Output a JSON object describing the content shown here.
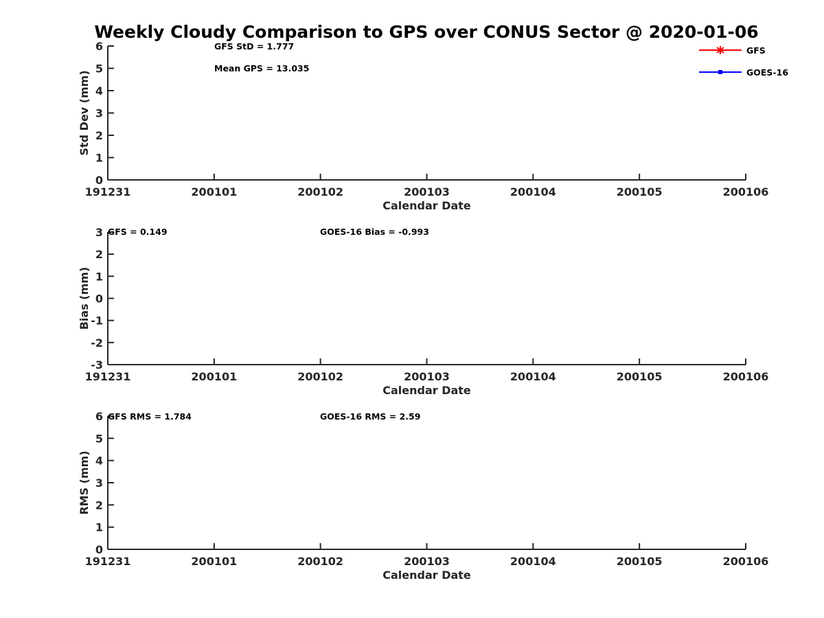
{
  "title": "Weekly Cloudy Comparison to GPS over CONUS Sector @ 2020-01-06",
  "colors": {
    "axis": "#262626",
    "gfs": "#ff0000",
    "goes16": "#0000ff",
    "text": "#000000"
  },
  "legend": {
    "placement": "top-right",
    "entries": [
      {
        "name": "GFS",
        "color": "#ff0000",
        "marker": "asterisk"
      },
      {
        "name": "GOES-16",
        "color": "#0000ff",
        "marker": "square"
      }
    ]
  },
  "chart_data": [
    {
      "type": "line",
      "ylabel": "Std Dev (mm)",
      "xlabel": "Calendar Date",
      "ylim": [
        0,
        6
      ],
      "yticks": [
        "0",
        "1",
        "2",
        "3",
        "4",
        "5",
        "6"
      ],
      "xticks": [
        "191231",
        "200101",
        "200102",
        "200103",
        "200104",
        "200105",
        "200106"
      ],
      "grid": false,
      "series": [
        {
          "name": "GFS",
          "values": []
        },
        {
          "name": "GOES-16",
          "values": []
        }
      ],
      "annotations": [
        "GFS StD = 1.777",
        "Mean GPS = 13.035"
      ]
    },
    {
      "type": "line",
      "ylabel": "Bias (mm)",
      "xlabel": "Calendar Date",
      "ylim": [
        -3,
        3
      ],
      "yticks": [
        "-3",
        "-2",
        "-1",
        "0",
        "1",
        "2",
        "3"
      ],
      "xticks": [
        "191231",
        "200101",
        "200102",
        "200103",
        "200104",
        "200105",
        "200106"
      ],
      "grid": false,
      "series": [
        {
          "name": "GFS",
          "values": []
        },
        {
          "name": "GOES-16",
          "values": []
        }
      ],
      "annotations": [
        "GFS = 0.149",
        "GOES-16 Bias  = -0.993"
      ]
    },
    {
      "type": "line",
      "ylabel": "RMS (mm)",
      "xlabel": "Calendar Date",
      "ylim": [
        0,
        6
      ],
      "yticks": [
        "0",
        "1",
        "2",
        "3",
        "4",
        "5",
        "6"
      ],
      "xticks": [
        "191231",
        "200101",
        "200102",
        "200103",
        "200104",
        "200105",
        "200106"
      ],
      "grid": false,
      "series": [
        {
          "name": "GFS",
          "values": []
        },
        {
          "name": "GOES-16",
          "values": []
        }
      ],
      "annotations": [
        "GFS RMS = 1.784",
        "GOES-16 RMS = 2.59"
      ]
    }
  ]
}
